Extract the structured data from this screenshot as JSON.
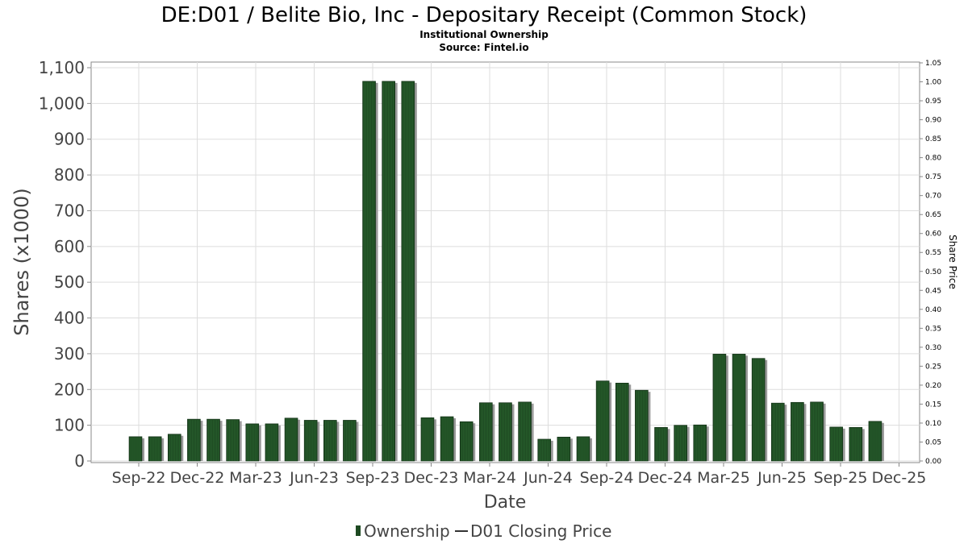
{
  "chart_data": {
    "type": "bar",
    "title": "DE:D01 / Belite Bio, Inc - Depositary Receipt (Common Stock)",
    "subtitle_lines": [
      "Institutional Ownership",
      "Source: Fintel.io"
    ],
    "xlabel": "Date",
    "ylabel": "Shares (x1000)",
    "y2label": "Share Price",
    "ylim": [
      0,
      1100
    ],
    "y2lim": [
      0,
      1.05
    ],
    "yticks": [
      "0",
      "100",
      "200",
      "300",
      "400",
      "500",
      "600",
      "700",
      "800",
      "900",
      "1,000",
      "1,100"
    ],
    "y2ticks": [
      "0.00",
      "0.05",
      "0.10",
      "0.15",
      "0.20",
      "0.25",
      "0.30",
      "0.35",
      "0.40",
      "0.45",
      "0.50",
      "0.55",
      "0.60",
      "0.65",
      "0.70",
      "0.75",
      "0.80",
      "0.85",
      "0.90",
      "0.95",
      "1.00",
      "1.05"
    ],
    "xticks": [
      "Sep-22",
      "Dec-22",
      "Mar-23",
      "Jun-23",
      "Sep-23",
      "Dec-23",
      "Mar-24",
      "Jun-24",
      "Sep-24",
      "Dec-24",
      "Mar-25",
      "Jun-25",
      "Sep-25",
      "Dec-25"
    ],
    "grid": true,
    "legend_position": "bottom",
    "series": [
      {
        "name": "Ownership",
        "color": "#1e4a22",
        "values": [
          68,
          68,
          75,
          117,
          117,
          116,
          104,
          104,
          120,
          114,
          114,
          114,
          1062,
          1062,
          1062,
          121,
          124,
          110,
          163,
          163,
          165,
          61,
          67,
          68,
          224,
          218,
          198,
          94,
          100,
          101,
          299,
          299,
          287,
          162,
          164,
          165,
          95,
          94,
          111
        ]
      },
      {
        "name": "D01 Closing Price",
        "color": "#333333",
        "values": []
      }
    ]
  }
}
